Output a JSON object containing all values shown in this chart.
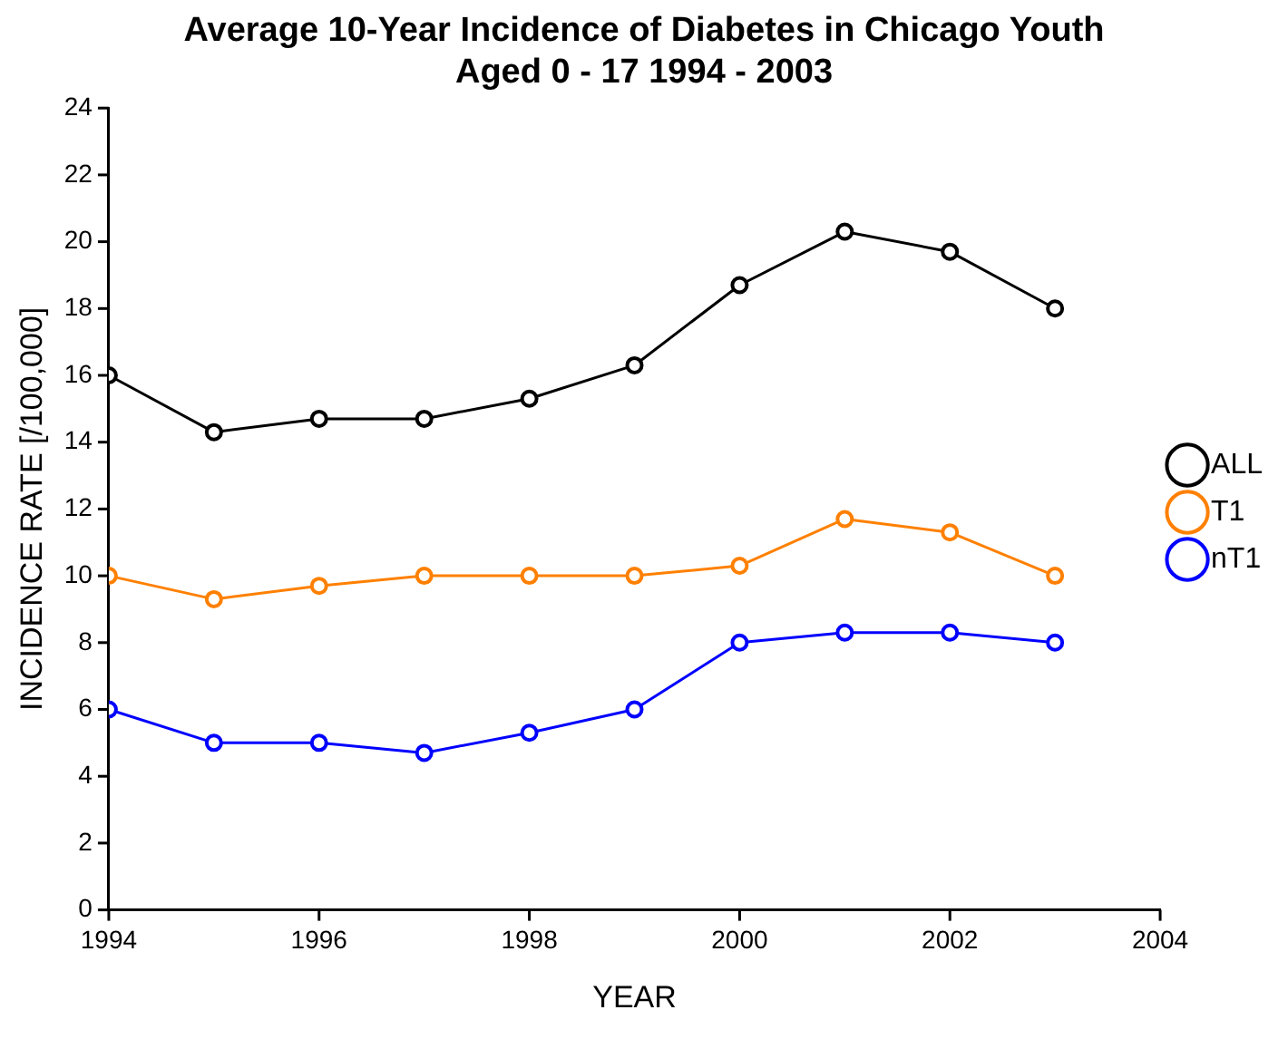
{
  "chart_data": {
    "type": "line",
    "title": "Average 10-Year Incidence of Diabetes in Chicago Youth\nAged 0 - 17 1994 - 2003",
    "xlabel": "YEAR",
    "ylabel": "INCIDENCE RATE [/100,000]",
    "x": [
      1994,
      1995,
      1996,
      1997,
      1998,
      1999,
      2000,
      2001,
      2002,
      2003
    ],
    "series": [
      {
        "name": "ALL",
        "color": "#000000",
        "values": [
          16,
          14.3,
          14.7,
          14.7,
          15.3,
          16.3,
          18.7,
          20.3,
          19.7,
          18
        ]
      },
      {
        "name": "T1",
        "color": "#ff8000",
        "values": [
          10,
          9.3,
          9.7,
          10,
          10,
          10,
          10.3,
          11.7,
          11.3,
          10
        ]
      },
      {
        "name": "nT1",
        "color": "#0000ff",
        "values": [
          6,
          5,
          5,
          4.7,
          5.3,
          6,
          8,
          8.3,
          8.3,
          8
        ]
      }
    ],
    "xlim": [
      1994,
      2004
    ],
    "xticks": [
      1994,
      1996,
      1998,
      2000,
      2002,
      2004
    ],
    "ylim": [
      0,
      24
    ],
    "yticks": [
      0,
      2,
      4,
      6,
      8,
      10,
      12,
      14,
      16,
      18,
      20,
      22,
      24
    ],
    "grid": false,
    "legend": "right",
    "marker": "circle",
    "line_style": "solid"
  }
}
